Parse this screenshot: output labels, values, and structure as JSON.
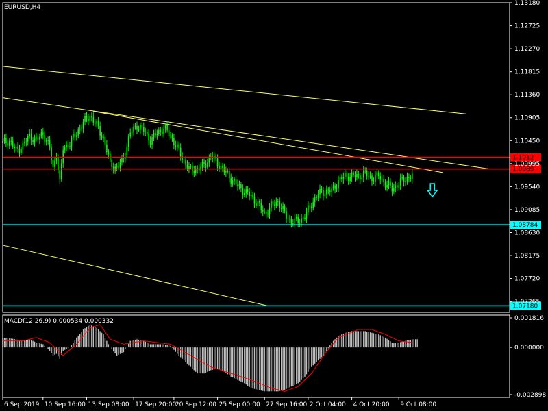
{
  "chart_title": "EURUSD,H4",
  "macd_label": "MACD(12,26,9) 0.000534 0.000332",
  "colors": {
    "background": "#000000",
    "candle": "#00ff00",
    "text": "#ffffff",
    "grid_axis": "#ffffff",
    "trendline": "#ffff66",
    "resistance": "#ff0000",
    "support": "#00ffff",
    "macd_histogram": "#c0c0c0",
    "macd_signal": "#ff0000",
    "arrow": "#00ffff"
  },
  "arrow_icon": "down-arrow-icon",
  "chart_data": [
    {
      "type": "candlestick",
      "symbol": "EURUSD",
      "timeframe": "H4",
      "ylim": [
        1.0705,
        1.1318
      ],
      "price_ticks": [
        "1.13180",
        "1.12725",
        "1.12270",
        "1.11815",
        "1.11360",
        "1.10905",
        "1.10450",
        "1.09995",
        "1.09540",
        "1.09085",
        "1.08630",
        "1.08175",
        "1.07720",
        "1.07265"
      ],
      "x_ticks": [
        "6 Sep 2019",
        "10 Sep 16:00",
        "13 Sep 08:00",
        "17 Sep 20:00",
        "20 Sep 12:00",
        "25 Sep 00:00",
        "27 Sep 16:00",
        "2 Oct 04:00",
        "4 Oct 20:00",
        "9 Oct 08:00"
      ],
      "close_path": [
        [
          0,
          1.104
        ],
        [
          4,
          1.1045
        ],
        [
          8,
          1.1025
        ],
        [
          12,
          1.1035
        ],
        [
          16,
          1.1055
        ],
        [
          20,
          1.1045
        ],
        [
          24,
          1.106
        ],
        [
          28,
          1.103
        ],
        [
          30,
          1.099
        ],
        [
          32,
          1.102
        ],
        [
          34,
          1.096
        ],
        [
          36,
          1.103
        ],
        [
          40,
          1.104
        ],
        [
          44,
          1.106
        ],
        [
          48,
          1.108
        ],
        [
          52,
          1.1095
        ],
        [
          56,
          1.1075
        ],
        [
          60,
          1.105
        ],
        [
          64,
          1.1
        ],
        [
          68,
          1.099
        ],
        [
          72,
          1.101
        ],
        [
          76,
          1.106
        ],
        [
          80,
          1.1075
        ],
        [
          84,
          1.1065
        ],
        [
          88,
          1.1045
        ],
        [
          92,
          1.106
        ],
        [
          96,
          1.107
        ],
        [
          100,
          1.1055
        ],
        [
          104,
          1.103
        ],
        [
          108,
          1.1005
        ],
        [
          112,
          1.0985
        ],
        [
          116,
          1.099
        ],
        [
          120,
          1.0995
        ],
        [
          124,
          1.1015
        ],
        [
          128,
          1.1
        ],
        [
          132,
          1.0985
        ],
        [
          136,
          1.097
        ],
        [
          140,
          1.0955
        ],
        [
          144,
          1.0945
        ],
        [
          148,
          1.0935
        ],
        [
          152,
          1.092
        ],
        [
          156,
          1.09
        ],
        [
          160,
          1.0915
        ],
        [
          164,
          1.0925
        ],
        [
          168,
          1.09
        ],
        [
          172,
          1.0885
        ],
        [
          176,
          1.0885
        ],
        [
          180,
          1.0895
        ],
        [
          184,
          1.092
        ],
        [
          188,
          1.094
        ],
        [
          192,
          1.0945
        ],
        [
          196,
          1.0945
        ],
        [
          200,
          1.0965
        ],
        [
          204,
          1.0975
        ],
        [
          208,
          1.0975
        ],
        [
          212,
          1.0975
        ],
        [
          216,
          1.098
        ],
        [
          220,
          1.097
        ],
        [
          224,
          1.0975
        ],
        [
          228,
          1.096
        ],
        [
          232,
          1.095
        ],
        [
          236,
          1.096
        ],
        [
          240,
          1.097
        ],
        [
          244,
          1.0975
        ]
      ],
      "horizontal_lines": [
        {
          "price": 1.1012,
          "label": "1.1012",
          "color": "#ff0000"
        },
        {
          "price": 1.0989,
          "label": "1.0989",
          "color": "#ff0000"
        },
        {
          "price": 1.08784,
          "label": "1.08784",
          "color": "#00ffff"
        },
        {
          "price": 1.0718,
          "label": "1.07180",
          "color": "#00ffff"
        }
      ],
      "trendlines": [
        {
          "from": [
            0,
            1.1192
          ],
          "to": [
            276,
            1.1098
          ]
        },
        {
          "from": [
            0,
            1.113
          ],
          "to": [
            290,
            1.0989
          ]
        },
        {
          "from": [
            54,
            1.1103
          ],
          "to": [
            262,
            1.0982
          ]
        },
        {
          "from": [
            0,
            1.0838
          ],
          "to": [
            158,
            1.0718
          ]
        }
      ]
    },
    {
      "type": "macd",
      "ylim": [
        -0.002898,
        0.001816
      ],
      "y_ticks": [
        "0.001816",
        "0.000000",
        "-0.002898"
      ],
      "histogram": [
        [
          0,
          0.0006
        ],
        [
          4,
          0.00055
        ],
        [
          8,
          0.0005
        ],
        [
          12,
          0.0004
        ],
        [
          16,
          0.0005
        ],
        [
          20,
          0.0003
        ],
        [
          24,
          0.0002
        ],
        [
          28,
          -0.0002
        ],
        [
          30,
          -0.0005
        ],
        [
          32,
          -0.0004
        ],
        [
          34,
          -0.0007
        ],
        [
          36,
          -0.0002
        ],
        [
          40,
          0.0
        ],
        [
          44,
          0.0006
        ],
        [
          48,
          0.0011
        ],
        [
          52,
          0.0014
        ],
        [
          56,
          0.0012
        ],
        [
          60,
          0.0008
        ],
        [
          64,
          0.0
        ],
        [
          68,
          -0.0005
        ],
        [
          72,
          -0.0003
        ],
        [
          76,
          0.0004
        ],
        [
          80,
          0.0005
        ],
        [
          84,
          0.0004
        ],
        [
          88,
          0.0002
        ],
        [
          92,
          0.0002
        ],
        [
          96,
          0.0002
        ],
        [
          100,
          0.0001
        ],
        [
          104,
          -0.0004
        ],
        [
          108,
          -0.0008
        ],
        [
          112,
          -0.0012
        ],
        [
          116,
          -0.0016
        ],
        [
          120,
          -0.0016
        ],
        [
          124,
          -0.0014
        ],
        [
          128,
          -0.0013
        ],
        [
          132,
          -0.0015
        ],
        [
          136,
          -0.0018
        ],
        [
          140,
          -0.002
        ],
        [
          144,
          -0.0022
        ],
        [
          148,
          -0.0025
        ],
        [
          152,
          -0.0026
        ],
        [
          156,
          -0.0027
        ],
        [
          160,
          -0.0027
        ],
        [
          164,
          -0.0027
        ],
        [
          168,
          -0.0026
        ],
        [
          172,
          -0.0024
        ],
        [
          176,
          -0.0022
        ],
        [
          180,
          -0.0018
        ],
        [
          184,
          -0.0012
        ],
        [
          188,
          -0.0008
        ],
        [
          192,
          -0.0004
        ],
        [
          196,
          0.0003
        ],
        [
          200,
          0.0007
        ],
        [
          204,
          0.0009
        ],
        [
          208,
          0.001
        ],
        [
          212,
          0.001
        ],
        [
          216,
          0.001
        ],
        [
          220,
          0.0009
        ],
        [
          224,
          0.0008
        ],
        [
          228,
          0.0006
        ],
        [
          232,
          0.0003
        ],
        [
          236,
          0.0003
        ],
        [
          240,
          0.0004
        ],
        [
          244,
          0.0005
        ]
      ],
      "signal": [
        [
          0,
          0.0004
        ],
        [
          12,
          0.0004
        ],
        [
          20,
          0.0006
        ],
        [
          28,
          0.0003
        ],
        [
          36,
          -0.0005
        ],
        [
          44,
          0.0002
        ],
        [
          52,
          0.0012
        ],
        [
          58,
          0.0014
        ],
        [
          64,
          0.0005
        ],
        [
          72,
          0.0002
        ],
        [
          84,
          0.0004
        ],
        [
          100,
          0.0002
        ],
        [
          112,
          -0.0005
        ],
        [
          124,
          -0.0012
        ],
        [
          136,
          -0.0016
        ],
        [
          148,
          -0.002
        ],
        [
          160,
          -0.0025
        ],
        [
          168,
          -0.0027
        ],
        [
          176,
          -0.0024
        ],
        [
          184,
          -0.0016
        ],
        [
          192,
          -0.0004
        ],
        [
          200,
          0.0006
        ],
        [
          212,
          0.0011
        ],
        [
          220,
          0.0011
        ],
        [
          228,
          0.0008
        ],
        [
          236,
          0.0004
        ],
        [
          244,
          0.0003
        ]
      ]
    }
  ]
}
